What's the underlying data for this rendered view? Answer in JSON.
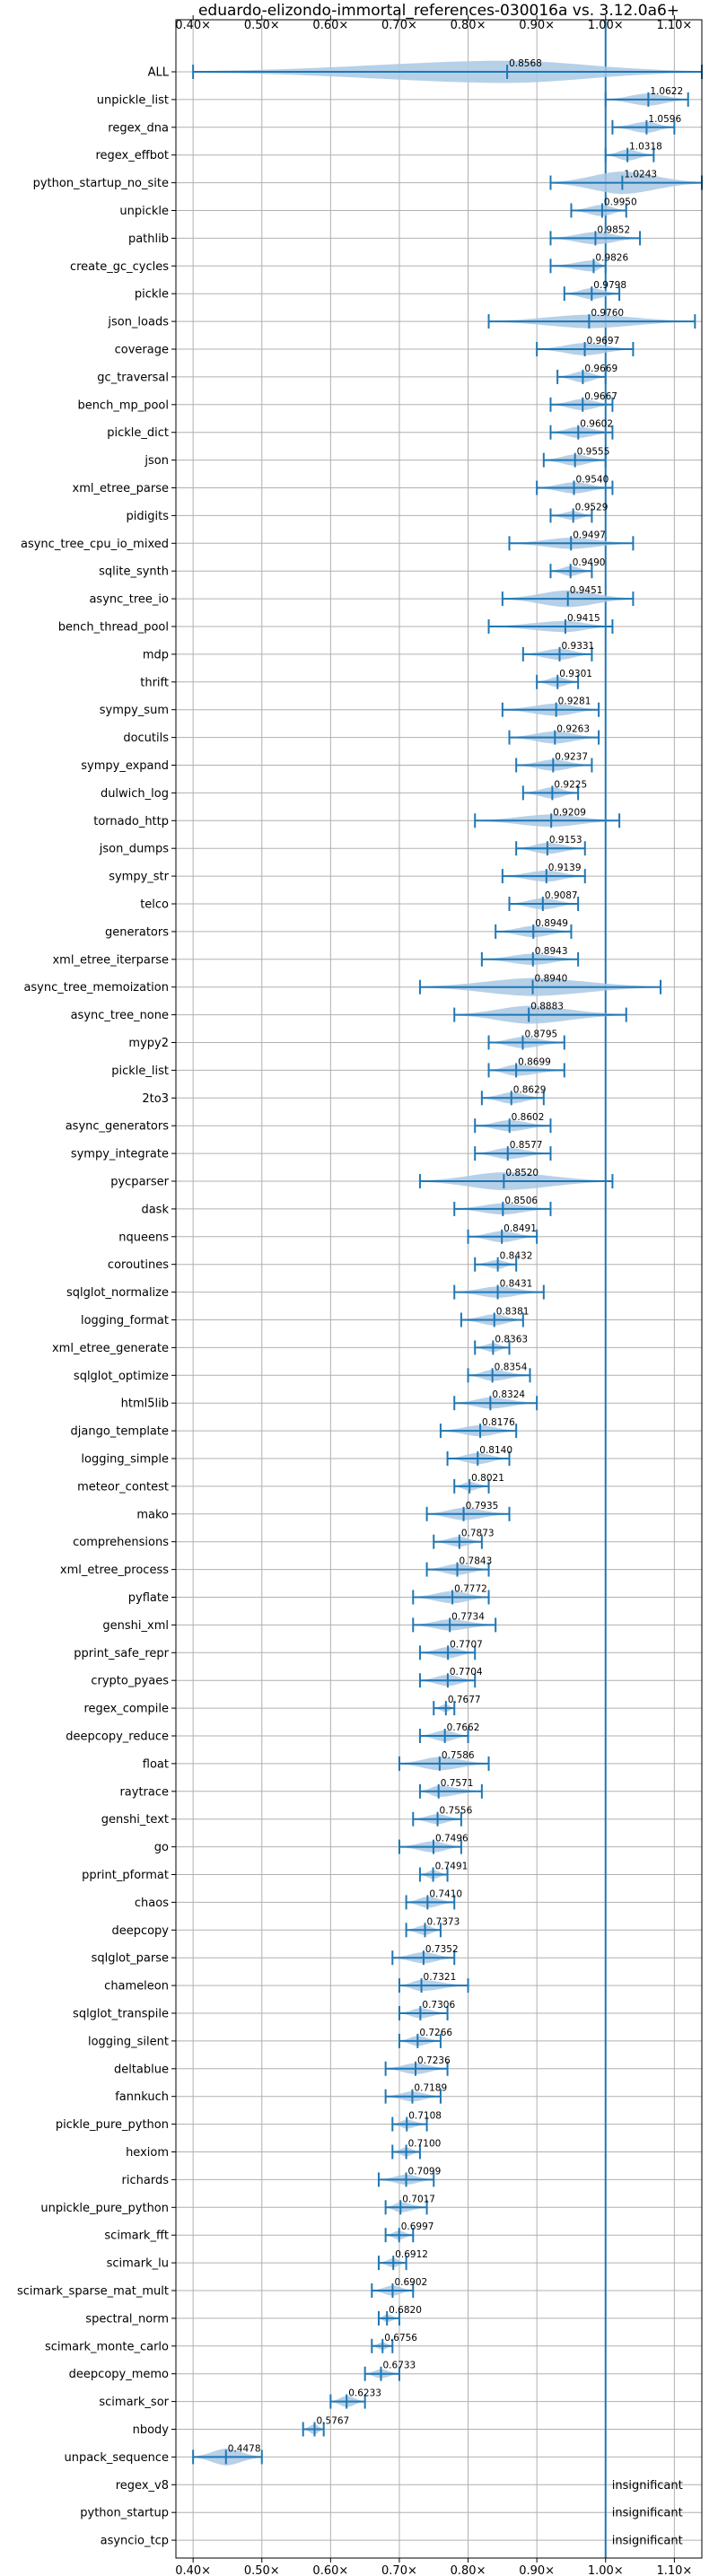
{
  "chart_data": {
    "type": "violin",
    "title": "eduardo-elizondo-immortal_references-030016a vs. 3.12.0a6+",
    "xlim": [
      0.375,
      1.14
    ],
    "xticks": [
      0.4,
      0.5,
      0.6,
      0.7,
      0.8,
      0.9,
      1.0,
      1.1
    ],
    "xtick_labels": [
      "0.40×",
      "0.50×",
      "0.60×",
      "0.70×",
      "0.80×",
      "0.90×",
      "1.00×",
      "1.10×"
    ],
    "reference_line": 1.0,
    "grid": true,
    "colors": {
      "violin": "#a9c8e4",
      "whisker": "#1f77b4",
      "reference": "#1f77b4"
    },
    "insignificant_label": "insignificant",
    "benchmarks": [
      {
        "name": "ALL",
        "value": 0.8568,
        "value_label": "0.8568",
        "min": 0.4,
        "max": 1.14,
        "width": 1.0
      },
      {
        "name": "unpickle_list",
        "value": 1.0622,
        "value_label": "1.0622",
        "min": 1.0,
        "max": 1.12,
        "width": 0.55
      },
      {
        "name": "regex_dna",
        "value": 1.0596,
        "value_label": "1.0596",
        "min": 1.01,
        "max": 1.1,
        "width": 0.5
      },
      {
        "name": "regex_effbot",
        "value": 1.0318,
        "value_label": "1.0318",
        "min": 1.0,
        "max": 1.07,
        "width": 0.5
      },
      {
        "name": "python_startup_no_site",
        "value": 1.0243,
        "value_label": "1.0243",
        "min": 0.92,
        "max": 1.14,
        "width": 1.0
      },
      {
        "name": "unpickle",
        "value": 0.995,
        "value_label": "0.9950",
        "min": 0.95,
        "max": 1.03,
        "width": 0.5
      },
      {
        "name": "pathlib",
        "value": 0.9852,
        "value_label": "0.9852",
        "min": 0.92,
        "max": 1.05,
        "width": 0.55
      },
      {
        "name": "create_gc_cycles",
        "value": 0.9826,
        "value_label": "0.9826",
        "min": 0.92,
        "max": 1.0,
        "width": 0.5
      },
      {
        "name": "pickle",
        "value": 0.9798,
        "value_label": "0.9798",
        "min": 0.94,
        "max": 1.02,
        "width": 0.5
      },
      {
        "name": "json_loads",
        "value": 0.976,
        "value_label": "0.9760",
        "min": 0.83,
        "max": 1.13,
        "width": 0.6
      },
      {
        "name": "coverage",
        "value": 0.9697,
        "value_label": "0.9697",
        "min": 0.9,
        "max": 1.04,
        "width": 0.55
      },
      {
        "name": "gc_traversal",
        "value": 0.9669,
        "value_label": "0.9669",
        "min": 0.93,
        "max": 1.0,
        "width": 0.5
      },
      {
        "name": "bench_mp_pool",
        "value": 0.9667,
        "value_label": "0.9667",
        "min": 0.92,
        "max": 1.01,
        "width": 0.5
      },
      {
        "name": "pickle_dict",
        "value": 0.9602,
        "value_label": "0.9602",
        "min": 0.92,
        "max": 1.01,
        "width": 0.5
      },
      {
        "name": "json",
        "value": 0.9555,
        "value_label": "0.9555",
        "min": 0.91,
        "max": 1.0,
        "width": 0.5
      },
      {
        "name": "xml_etree_parse",
        "value": 0.954,
        "value_label": "0.9540",
        "min": 0.9,
        "max": 1.01,
        "width": 0.5
      },
      {
        "name": "pidigits",
        "value": 0.9529,
        "value_label": "0.9529",
        "min": 0.92,
        "max": 0.98,
        "width": 0.4
      },
      {
        "name": "async_tree_cpu_io_mixed",
        "value": 0.9497,
        "value_label": "0.9497",
        "min": 0.86,
        "max": 1.04,
        "width": 0.5
      },
      {
        "name": "sqlite_synth",
        "value": 0.949,
        "value_label": "0.9490",
        "min": 0.92,
        "max": 0.98,
        "width": 0.45
      },
      {
        "name": "async_tree_io",
        "value": 0.9451,
        "value_label": "0.9451",
        "min": 0.85,
        "max": 1.04,
        "width": 0.75
      },
      {
        "name": "bench_thread_pool",
        "value": 0.9415,
        "value_label": "0.9415",
        "min": 0.83,
        "max": 1.01,
        "width": 0.5
      },
      {
        "name": "mdp",
        "value": 0.9331,
        "value_label": "0.9331",
        "min": 0.88,
        "max": 0.98,
        "width": 0.5
      },
      {
        "name": "thrift",
        "value": 0.9301,
        "value_label": "0.9301",
        "min": 0.9,
        "max": 0.96,
        "width": 0.45
      },
      {
        "name": "sympy_sum",
        "value": 0.9281,
        "value_label": "0.9281",
        "min": 0.85,
        "max": 0.99,
        "width": 0.55
      },
      {
        "name": "docutils",
        "value": 0.9263,
        "value_label": "0.9263",
        "min": 0.86,
        "max": 0.99,
        "width": 0.55
      },
      {
        "name": "sympy_expand",
        "value": 0.9237,
        "value_label": "0.9237",
        "min": 0.87,
        "max": 0.98,
        "width": 0.5
      },
      {
        "name": "dulwich_log",
        "value": 0.9225,
        "value_label": "0.9225",
        "min": 0.88,
        "max": 0.96,
        "width": 0.5
      },
      {
        "name": "tornado_http",
        "value": 0.9209,
        "value_label": "0.9209",
        "min": 0.81,
        "max": 1.02,
        "width": 0.55
      },
      {
        "name": "json_dumps",
        "value": 0.9153,
        "value_label": "0.9153",
        "min": 0.87,
        "max": 0.97,
        "width": 0.5
      },
      {
        "name": "sympy_str",
        "value": 0.9139,
        "value_label": "0.9139",
        "min": 0.85,
        "max": 0.97,
        "width": 0.5
      },
      {
        "name": "telco",
        "value": 0.9087,
        "value_label": "0.9087",
        "min": 0.86,
        "max": 0.96,
        "width": 0.5
      },
      {
        "name": "generators",
        "value": 0.8949,
        "value_label": "0.8949",
        "min": 0.84,
        "max": 0.95,
        "width": 0.5
      },
      {
        "name": "xml_etree_iterparse",
        "value": 0.8943,
        "value_label": "0.8943",
        "min": 0.82,
        "max": 0.96,
        "width": 0.5
      },
      {
        "name": "async_tree_memoization",
        "value": 0.894,
        "value_label": "0.8940",
        "min": 0.73,
        "max": 1.08,
        "width": 0.8
      },
      {
        "name": "async_tree_none",
        "value": 0.8883,
        "value_label": "0.8883",
        "min": 0.78,
        "max": 1.03,
        "width": 0.8
      },
      {
        "name": "mypy2",
        "value": 0.8795,
        "value_label": "0.8795",
        "min": 0.83,
        "max": 0.94,
        "width": 0.5
      },
      {
        "name": "pickle_list",
        "value": 0.8699,
        "value_label": "0.8699",
        "min": 0.83,
        "max": 0.94,
        "width": 0.5
      },
      {
        "name": "2to3",
        "value": 0.8629,
        "value_label": "0.8629",
        "min": 0.82,
        "max": 0.91,
        "width": 0.5
      },
      {
        "name": "async_generators",
        "value": 0.8602,
        "value_label": "0.8602",
        "min": 0.81,
        "max": 0.92,
        "width": 0.5
      },
      {
        "name": "sympy_integrate",
        "value": 0.8577,
        "value_label": "0.8577",
        "min": 0.81,
        "max": 0.92,
        "width": 0.5
      },
      {
        "name": "pycparser",
        "value": 0.852,
        "value_label": "0.8520",
        "min": 0.73,
        "max": 1.01,
        "width": 0.8
      },
      {
        "name": "dask",
        "value": 0.8506,
        "value_label": "0.8506",
        "min": 0.78,
        "max": 0.92,
        "width": 0.5
      },
      {
        "name": "nqueens",
        "value": 0.8491,
        "value_label": "0.8491",
        "min": 0.8,
        "max": 0.9,
        "width": 0.5
      },
      {
        "name": "coroutines",
        "value": 0.8432,
        "value_label": "0.8432",
        "min": 0.81,
        "max": 0.87,
        "width": 0.4
      },
      {
        "name": "sqlglot_normalize",
        "value": 0.8431,
        "value_label": "0.8431",
        "min": 0.78,
        "max": 0.91,
        "width": 0.5
      },
      {
        "name": "logging_format",
        "value": 0.8381,
        "value_label": "0.8381",
        "min": 0.79,
        "max": 0.88,
        "width": 0.5
      },
      {
        "name": "xml_etree_generate",
        "value": 0.8363,
        "value_label": "0.8363",
        "min": 0.81,
        "max": 0.86,
        "width": 0.4
      },
      {
        "name": "sqlglot_optimize",
        "value": 0.8354,
        "value_label": "0.8354",
        "min": 0.8,
        "max": 0.89,
        "width": 0.5
      },
      {
        "name": "html5lib",
        "value": 0.8324,
        "value_label": "0.8324",
        "min": 0.78,
        "max": 0.9,
        "width": 0.5
      },
      {
        "name": "django_template",
        "value": 0.8176,
        "value_label": "0.8176",
        "min": 0.76,
        "max": 0.87,
        "width": 0.5
      },
      {
        "name": "logging_simple",
        "value": 0.814,
        "value_label": "0.8140",
        "min": 0.77,
        "max": 0.86,
        "width": 0.5
      },
      {
        "name": "meteor_contest",
        "value": 0.8021,
        "value_label": "0.8021",
        "min": 0.78,
        "max": 0.83,
        "width": 0.4
      },
      {
        "name": "mako",
        "value": 0.7935,
        "value_label": "0.7935",
        "min": 0.74,
        "max": 0.86,
        "width": 0.55
      },
      {
        "name": "comprehensions",
        "value": 0.7873,
        "value_label": "0.7873",
        "min": 0.75,
        "max": 0.82,
        "width": 0.45
      },
      {
        "name": "xml_etree_process",
        "value": 0.7843,
        "value_label": "0.7843",
        "min": 0.74,
        "max": 0.83,
        "width": 0.5
      },
      {
        "name": "pyflate",
        "value": 0.7772,
        "value_label": "0.7772",
        "min": 0.72,
        "max": 0.83,
        "width": 0.55
      },
      {
        "name": "genshi_xml",
        "value": 0.7734,
        "value_label": "0.7734",
        "min": 0.72,
        "max": 0.84,
        "width": 0.5
      },
      {
        "name": "pprint_safe_repr",
        "value": 0.7707,
        "value_label": "0.7707",
        "min": 0.73,
        "max": 0.81,
        "width": 0.5
      },
      {
        "name": "crypto_pyaes",
        "value": 0.7704,
        "value_label": "0.7704",
        "min": 0.73,
        "max": 0.81,
        "width": 0.5
      },
      {
        "name": "regex_compile",
        "value": 0.7677,
        "value_label": "0.7677",
        "min": 0.75,
        "max": 0.78,
        "width": 0.35
      },
      {
        "name": "deepcopy_reduce",
        "value": 0.7662,
        "value_label": "0.7662",
        "min": 0.73,
        "max": 0.8,
        "width": 0.5
      },
      {
        "name": "float",
        "value": 0.7586,
        "value_label": "0.7586",
        "min": 0.7,
        "max": 0.83,
        "width": 0.6
      },
      {
        "name": "raytrace",
        "value": 0.7571,
        "value_label": "0.7571",
        "min": 0.73,
        "max": 0.82,
        "width": 0.5
      },
      {
        "name": "genshi_text",
        "value": 0.7556,
        "value_label": "0.7556",
        "min": 0.72,
        "max": 0.79,
        "width": 0.45
      },
      {
        "name": "go",
        "value": 0.7496,
        "value_label": "0.7496",
        "min": 0.7,
        "max": 0.79,
        "width": 0.5
      },
      {
        "name": "pprint_pformat",
        "value": 0.7491,
        "value_label": "0.7491",
        "min": 0.73,
        "max": 0.77,
        "width": 0.4
      },
      {
        "name": "chaos",
        "value": 0.741,
        "value_label": "0.7410",
        "min": 0.71,
        "max": 0.78,
        "width": 0.5
      },
      {
        "name": "deepcopy",
        "value": 0.7373,
        "value_label": "0.7373",
        "min": 0.71,
        "max": 0.76,
        "width": 0.45
      },
      {
        "name": "sqlglot_parse",
        "value": 0.7352,
        "value_label": "0.7352",
        "min": 0.69,
        "max": 0.78,
        "width": 0.5
      },
      {
        "name": "chameleon",
        "value": 0.7321,
        "value_label": "0.7321",
        "min": 0.7,
        "max": 0.8,
        "width": 0.5
      },
      {
        "name": "sqlglot_transpile",
        "value": 0.7306,
        "value_label": "0.7306",
        "min": 0.7,
        "max": 0.77,
        "width": 0.45
      },
      {
        "name": "logging_silent",
        "value": 0.7266,
        "value_label": "0.7266",
        "min": 0.7,
        "max": 0.76,
        "width": 0.45
      },
      {
        "name": "deltablue",
        "value": 0.7236,
        "value_label": "0.7236",
        "min": 0.68,
        "max": 0.77,
        "width": 0.5
      },
      {
        "name": "fannkuch",
        "value": 0.7189,
        "value_label": "0.7189",
        "min": 0.68,
        "max": 0.76,
        "width": 0.45
      },
      {
        "name": "pickle_pure_python",
        "value": 0.7108,
        "value_label": "0.7108",
        "min": 0.69,
        "max": 0.74,
        "width": 0.4
      },
      {
        "name": "hexiom",
        "value": 0.71,
        "value_label": "0.7100",
        "min": 0.69,
        "max": 0.73,
        "width": 0.4
      },
      {
        "name": "richards",
        "value": 0.7099,
        "value_label": "0.7099",
        "min": 0.67,
        "max": 0.75,
        "width": 0.45
      },
      {
        "name": "unpickle_pure_python",
        "value": 0.7017,
        "value_label": "0.7017",
        "min": 0.68,
        "max": 0.74,
        "width": 0.45
      },
      {
        "name": "scimark_fft",
        "value": 0.6997,
        "value_label": "0.6997",
        "min": 0.68,
        "max": 0.72,
        "width": 0.4
      },
      {
        "name": "scimark_lu",
        "value": 0.6912,
        "value_label": "0.6912",
        "min": 0.67,
        "max": 0.71,
        "width": 0.4
      },
      {
        "name": "scimark_sparse_mat_mult",
        "value": 0.6902,
        "value_label": "0.6902",
        "min": 0.66,
        "max": 0.72,
        "width": 0.45
      },
      {
        "name": "spectral_norm",
        "value": 0.682,
        "value_label": "0.6820",
        "min": 0.67,
        "max": 0.7,
        "width": 0.35
      },
      {
        "name": "scimark_monte_carlo",
        "value": 0.6756,
        "value_label": "0.6756",
        "min": 0.66,
        "max": 0.69,
        "width": 0.35
      },
      {
        "name": "deepcopy_memo",
        "value": 0.6733,
        "value_label": "0.6733",
        "min": 0.65,
        "max": 0.7,
        "width": 0.4
      },
      {
        "name": "scimark_sor",
        "value": 0.6233,
        "value_label": "0.6233",
        "min": 0.6,
        "max": 0.65,
        "width": 0.5
      },
      {
        "name": "nbody",
        "value": 0.5767,
        "value_label": "0.5767",
        "min": 0.56,
        "max": 0.59,
        "width": 0.45
      },
      {
        "name": "unpack_sequence",
        "value": 0.4478,
        "value_label": "0.4478",
        "min": 0.4,
        "max": 0.5,
        "width": 0.75
      },
      {
        "name": "regex_v8",
        "insignificant": true
      },
      {
        "name": "python_startup",
        "insignificant": true
      },
      {
        "name": "asyncio_tcp",
        "insignificant": true
      }
    ]
  }
}
